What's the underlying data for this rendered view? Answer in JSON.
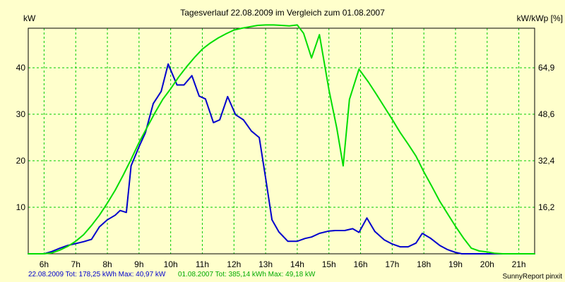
{
  "chart_data": {
    "type": "line",
    "title": "Tagesverlauf 22.08.2009 im Vergleich zum 01.08.2007",
    "ylabel_left": "kW",
    "ylabel_right": "kW/kWp [%]",
    "xlim": [
      5.5,
      21.5
    ],
    "ylim_left": [
      0,
      48.5
    ],
    "x_ticks": [
      6,
      7,
      8,
      9,
      10,
      11,
      12,
      13,
      14,
      15,
      16,
      17,
      18,
      19,
      20,
      21
    ],
    "x_tick_labels": [
      "6h",
      "7h",
      "8h",
      "9h",
      "10h",
      "11h",
      "12h",
      "13h",
      "14h",
      "15h",
      "16h",
      "17h",
      "18h",
      "19h",
      "20h",
      "21h"
    ],
    "y_left_ticks": [
      10,
      20,
      30,
      40
    ],
    "y_left_tick_labels": [
      "10",
      "20",
      "30",
      "40"
    ],
    "y_right_tick_labels": [
      "16,2",
      "32,4",
      "48,6",
      "64,9"
    ],
    "grid": true,
    "background": "#ffffcc",
    "grid_color": "#00cc00",
    "series": [
      {
        "color": "#0000cc",
        "x": [
          5.5,
          5.75,
          6.0,
          6.25,
          6.5,
          6.75,
          7.0,
          7.25,
          7.5,
          7.75,
          8.0,
          8.25,
          8.4,
          8.6,
          8.75,
          9.0,
          9.2,
          9.45,
          9.7,
          9.92,
          10.2,
          10.42,
          10.67,
          10.9,
          11.1,
          11.35,
          11.55,
          11.8,
          12.05,
          12.3,
          12.55,
          12.8,
          13.0,
          13.2,
          13.42,
          13.7,
          14.0,
          14.25,
          14.45,
          14.7,
          15.0,
          15.2,
          15.5,
          15.75,
          15.95,
          16.2,
          16.45,
          16.75,
          17.0,
          17.25,
          17.5,
          17.75,
          17.95,
          18.2,
          18.5,
          18.75,
          19.0,
          19.2,
          19.5,
          20.0,
          20.5,
          21.0,
          21.5
        ],
        "y": [
          0.0,
          0.0,
          0.0,
          0.5,
          1.2,
          1.8,
          2.2,
          2.6,
          3.1,
          5.8,
          7.3,
          8.3,
          9.3,
          8.9,
          18.9,
          23.0,
          26.0,
          32.3,
          34.9,
          40.8,
          36.3,
          36.3,
          38.3,
          33.9,
          33.3,
          28.2,
          28.8,
          33.8,
          29.9,
          28.8,
          26.4,
          25.0,
          16.3,
          7.3,
          4.7,
          2.7,
          2.7,
          3.3,
          3.6,
          4.4,
          4.9,
          5.0,
          5.0,
          5.4,
          4.6,
          7.7,
          4.8,
          3.0,
          2.1,
          1.5,
          1.5,
          2.3,
          4.4,
          3.4,
          1.8,
          0.9,
          0.3,
          0.0,
          0.0,
          0.0,
          0.0,
          0.0,
          0.0
        ]
      },
      {
        "color": "#00dd00",
        "x": [
          5.5,
          5.75,
          6.0,
          6.25,
          6.5,
          6.75,
          7.0,
          7.25,
          7.5,
          7.75,
          8.0,
          8.25,
          8.5,
          8.75,
          9.0,
          9.25,
          9.5,
          9.75,
          10.0,
          10.25,
          10.5,
          10.75,
          11.0,
          11.25,
          11.5,
          11.75,
          12.0,
          12.25,
          12.5,
          12.75,
          13.0,
          13.25,
          13.5,
          13.75,
          14.0,
          14.2,
          14.45,
          14.7,
          15.0,
          15.25,
          15.45,
          15.65,
          15.95,
          16.25,
          16.5,
          16.75,
          17.0,
          17.25,
          17.5,
          17.75,
          18.0,
          18.25,
          18.5,
          18.75,
          19.0,
          19.25,
          19.5,
          19.75,
          20.0,
          20.25,
          20.5,
          20.75,
          21.0,
          21.25,
          21.5
        ],
        "y": [
          0.0,
          0.0,
          0.0,
          0.2,
          0.8,
          1.6,
          2.7,
          4.1,
          6.1,
          8.3,
          10.9,
          13.7,
          16.9,
          20.3,
          23.9,
          27.1,
          30.3,
          33.2,
          35.5,
          38.0,
          40.2,
          42.2,
          44.0,
          45.3,
          46.4,
          47.3,
          48.1,
          48.5,
          48.8,
          49.1,
          49.2,
          49.2,
          49.1,
          49.0,
          49.2,
          47.4,
          42.1,
          47.1,
          35.3,
          27.0,
          18.9,
          33.2,
          39.7,
          36.9,
          34.3,
          31.6,
          28.9,
          26.1,
          23.6,
          21.0,
          17.6,
          14.5,
          11.3,
          8.6,
          5.9,
          3.4,
          1.2,
          0.6,
          0.4,
          0.1,
          0.0,
          0.0,
          0.0,
          0.0,
          0.0
        ]
      }
    ],
    "footer_series1": "22.08.2009 Tot: 178,25 kWh Max: 40,97 kW",
    "footer_series2": "01.08.2007 Tot: 385,14 kWh Max: 49,18 kW",
    "footer_brand": "SunnyReport pinxit"
  }
}
